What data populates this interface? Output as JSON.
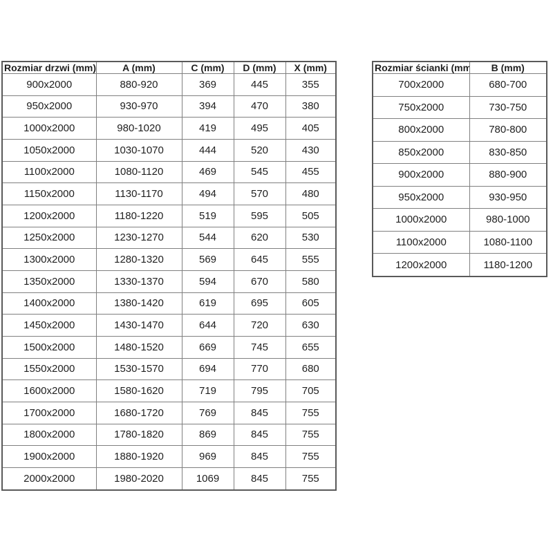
{
  "colors": {
    "background": "#ffffff",
    "border_outer": "#595959",
    "border_inner": "#7f7f7f",
    "text": "#1f1f1f"
  },
  "left_table": {
    "headers": [
      "Rozmiar drzwi (mm)",
      "A (mm)",
      "C (mm)",
      "D (mm)",
      "X (mm)"
    ],
    "rows": [
      [
        "900x2000",
        "880-920",
        "369",
        "445",
        "355"
      ],
      [
        "950x2000",
        "930-970",
        "394",
        "470",
        "380"
      ],
      [
        "1000x2000",
        "980-1020",
        "419",
        "495",
        "405"
      ],
      [
        "1050x2000",
        "1030-1070",
        "444",
        "520",
        "430"
      ],
      [
        "1100x2000",
        "1080-1120",
        "469",
        "545",
        "455"
      ],
      [
        "1150x2000",
        "1130-1170",
        "494",
        "570",
        "480"
      ],
      [
        "1200x2000",
        "1180-1220",
        "519",
        "595",
        "505"
      ],
      [
        "1250x2000",
        "1230-1270",
        "544",
        "620",
        "530"
      ],
      [
        "1300x2000",
        "1280-1320",
        "569",
        "645",
        "555"
      ],
      [
        "1350x2000",
        "1330-1370",
        "594",
        "670",
        "580"
      ],
      [
        "1400x2000",
        "1380-1420",
        "619",
        "695",
        "605"
      ],
      [
        "1450x2000",
        "1430-1470",
        "644",
        "720",
        "630"
      ],
      [
        "1500x2000",
        "1480-1520",
        "669",
        "745",
        "655"
      ],
      [
        "1550x2000",
        "1530-1570",
        "694",
        "770",
        "680"
      ],
      [
        "1600x2000",
        "1580-1620",
        "719",
        "795",
        "705"
      ],
      [
        "1700x2000",
        "1680-1720",
        "769",
        "845",
        "755"
      ],
      [
        "1800x2000",
        "1780-1820",
        "869",
        "845",
        "755"
      ],
      [
        "1900x2000",
        "1880-1920",
        "969",
        "845",
        "755"
      ],
      [
        "2000x2000",
        "1980-2020",
        "1069",
        "845",
        "755"
      ]
    ]
  },
  "right_table": {
    "headers": [
      "Rozmiar ścianki (mm)",
      "B (mm)"
    ],
    "rows": [
      [
        "700x2000",
        "680-700"
      ],
      [
        "750x2000",
        "730-750"
      ],
      [
        "800x2000",
        "780-800"
      ],
      [
        "850x2000",
        "830-850"
      ],
      [
        "900x2000",
        "880-900"
      ],
      [
        "950x2000",
        "930-950"
      ],
      [
        "1000x2000",
        "980-1000"
      ],
      [
        "1100x2000",
        "1080-1100"
      ],
      [
        "1200x2000",
        "1180-1200"
      ]
    ]
  }
}
